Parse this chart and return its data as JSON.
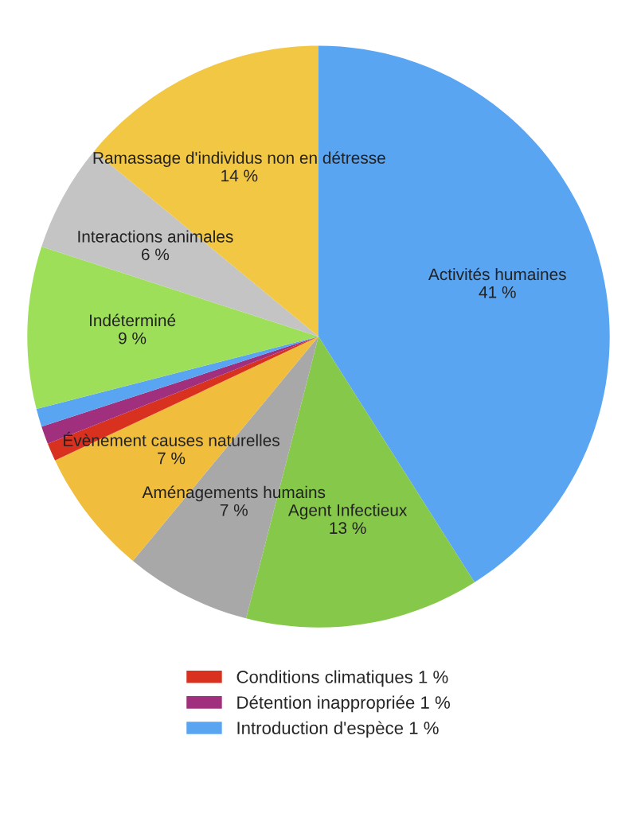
{
  "chart_data": {
    "type": "pie",
    "categories": [
      "Activités humaines",
      "Agent Infectieux",
      "Aménagements humains",
      "Évènement causes naturelles",
      "Conditions climatiques",
      "Détention inappropriée",
      "Introduction d'espèce",
      "Indéterminé",
      "Interactions animales",
      "Ramassage d'individus non en détresse"
    ],
    "values": [
      41,
      13,
      7,
      7,
      1,
      1,
      1,
      9,
      6,
      14
    ],
    "value_labels": [
      "41 %",
      "13 %",
      "7 %",
      "7 %",
      "1 %",
      "1 %",
      "1 %",
      "9 %",
      "6 %",
      "14 %"
    ],
    "colors": [
      "#5aa5f2",
      "#86c84a",
      "#a8a8a8",
      "#f0bd3c",
      "#d9311f",
      "#a0307e",
      "#5aa5f2",
      "#9edf5a",
      "#c4c4c4",
      "#f2c744"
    ],
    "legend": "bottom"
  }
}
